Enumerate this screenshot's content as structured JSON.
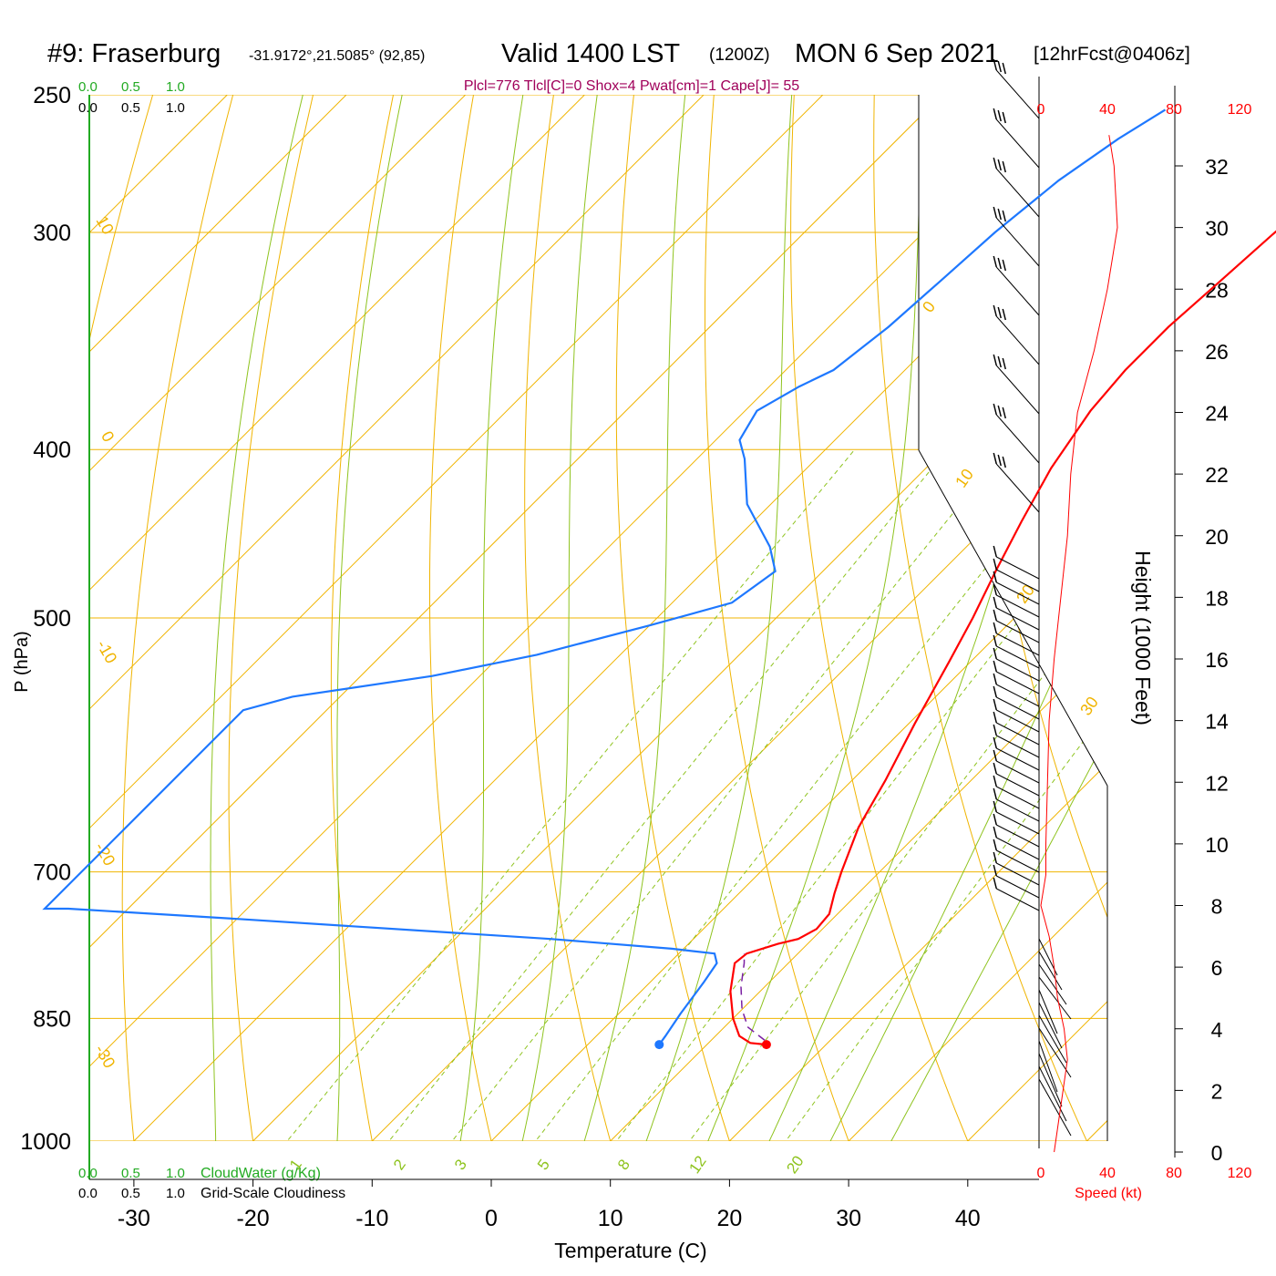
{
  "header": {
    "station": "#9: Fraserburg",
    "coords": "-31.9172°,21.5085° (92,85)",
    "valid": "Valid 1400 LST",
    "utc": "(1200Z)",
    "date": "MON 6 Sep 2021",
    "forecast": "[12hrFcst@0406z]",
    "indices": "Plcl=776 Tlcl[C]=0 Shox=4 Pwat[cm]=1 Cape[J]= 55"
  },
  "colors": {
    "isobar": "#f0b400",
    "dry_adiabat": "#f0b400",
    "moist_adiabat": "#8ec31e",
    "mixing_ratio": "#8ec31e",
    "temperature": "#ff0000",
    "dewpoint": "#1e78ff",
    "parcel": "#7a1fa2",
    "cloud_water": "#22aa22",
    "speed": "#ff0000",
    "title_indices": "#a0005a"
  },
  "axes": {
    "xlabel": "Temperature (C)",
    "ylabel": "P (hPa)",
    "height_label": "Height (1000 Feet)",
    "speed_label": "Speed (kt)",
    "cloudwater_label": "CloudWater (g/Kg)",
    "cloudiness_label": "Grid-Scale Cloudiness",
    "top_scale_green": [
      "0.0",
      "0.5",
      "1.0"
    ],
    "top_scale_black": [
      "0.0",
      "0.5",
      "1.0"
    ],
    "bottom_scale_green": [
      "0.0",
      "0.5",
      "1.0"
    ],
    "bottom_scale_black": [
      "0.0",
      "0.5",
      "1.0"
    ]
  },
  "chart_data": {
    "type": "line",
    "title": "#9: Fraserburg Valid 1400 LST (1200Z) MON 6 Sep 2021",
    "x_ticks": [
      -30,
      -20,
      -10,
      0,
      10,
      20,
      30,
      40
    ],
    "pressure_ticks": [
      250,
      300,
      400,
      500,
      700,
      850,
      1000
    ],
    "height_ticks": [
      0,
      2,
      4,
      6,
      8,
      10,
      12,
      14,
      16,
      18,
      20,
      22,
      24,
      26,
      28,
      30,
      32
    ],
    "speed_ticks_top": [
      "0",
      "40",
      "80",
      "120"
    ],
    "speed_ticks_bottom": [
      "0",
      "40",
      "80",
      "120"
    ],
    "dry_adiabat_labels": [
      "10",
      "0",
      "-10",
      "-20",
      "-30",
      "0",
      "10",
      "20",
      "30"
    ],
    "mixing_ratio_labels": [
      "1",
      "2",
      "3",
      "5",
      "8",
      "12",
      "20"
    ],
    "series": [
      {
        "name": "Temperature",
        "points": [
          [
            15.0,
            880
          ],
          [
            13.5,
            878
          ],
          [
            12.0,
            870
          ],
          [
            10.0,
            850
          ],
          [
            7.5,
            820
          ],
          [
            5.5,
            790
          ],
          [
            5.7,
            780
          ],
          [
            7.5,
            770
          ],
          [
            8.8,
            765
          ],
          [
            9.5,
            755
          ],
          [
            9.3,
            740
          ],
          [
            8.0,
            720
          ],
          [
            6.8,
            700
          ],
          [
            4.5,
            660
          ],
          [
            2.8,
            620
          ],
          [
            0.5,
            575
          ],
          [
            -1.8,
            530
          ],
          [
            -3.5,
            500
          ],
          [
            -5.5,
            470
          ],
          [
            -7.5,
            440
          ],
          [
            -9.5,
            410
          ],
          [
            -11.0,
            380
          ],
          [
            -11.5,
            360
          ],
          [
            -11.5,
            340
          ],
          [
            -11.0,
            320
          ],
          [
            -10.5,
            300
          ],
          [
            -9.5,
            280
          ],
          [
            -8.0,
            265
          ],
          [
            -6.0,
            255
          ]
        ]
      },
      {
        "name": "Dewpoint",
        "points": [
          [
            6.0,
            880
          ],
          [
            5.8,
            870
          ],
          [
            5.2,
            845
          ],
          [
            4.5,
            810
          ],
          [
            4.0,
            790
          ],
          [
            3.0,
            780
          ],
          [
            -1.0,
            775
          ],
          [
            -12.0,
            765
          ],
          [
            -40.0,
            745
          ],
          [
            -55.0,
            735
          ],
          [
            -57.0,
            735
          ],
          [
            -57.0,
            565
          ],
          [
            -54.0,
            555
          ],
          [
            -44.0,
            540
          ],
          [
            -37.0,
            525
          ],
          [
            -30.0,
            505
          ],
          [
            -25.0,
            490
          ],
          [
            -24.0,
            470
          ],
          [
            -26.5,
            455
          ],
          [
            -32.0,
            430
          ],
          [
            -36.0,
            405
          ],
          [
            -38.0,
            395
          ],
          [
            -39.0,
            380
          ],
          [
            -37.5,
            368
          ],
          [
            -36.0,
            360
          ],
          [
            -35.0,
            340
          ],
          [
            -34.5,
            320
          ],
          [
            -34.0,
            300
          ],
          [
            -33.0,
            280
          ],
          [
            -31.5,
            265
          ],
          [
            -30.0,
            255
          ]
        ]
      },
      {
        "name": "Parcel",
        "points": [
          [
            14.5,
            875
          ],
          [
            12.0,
            860
          ],
          [
            10.0,
            840
          ],
          [
            8.0,
            815
          ],
          [
            6.3,
            790
          ],
          [
            5.5,
            780
          ]
        ]
      }
    ],
    "surface_temperature": 15.0,
    "surface_dewpoint": 6.0,
    "surface_pressure": 880,
    "wind_speed_profile": [
      [
        0,
        8
      ],
      [
        3,
        16
      ],
      [
        4,
        14
      ],
      [
        5,
        10
      ],
      [
        6,
        8
      ],
      [
        7,
        5
      ],
      [
        8,
        0
      ],
      [
        9,
        3
      ],
      [
        10,
        3
      ],
      [
        12,
        4
      ],
      [
        14,
        5
      ],
      [
        16,
        8
      ],
      [
        18,
        12
      ],
      [
        20,
        16
      ],
      [
        22,
        18
      ],
      [
        24,
        22
      ],
      [
        26,
        32
      ],
      [
        28,
        40
      ],
      [
        30,
        46
      ],
      [
        32,
        44
      ],
      [
        33,
        41
      ]
    ]
  }
}
